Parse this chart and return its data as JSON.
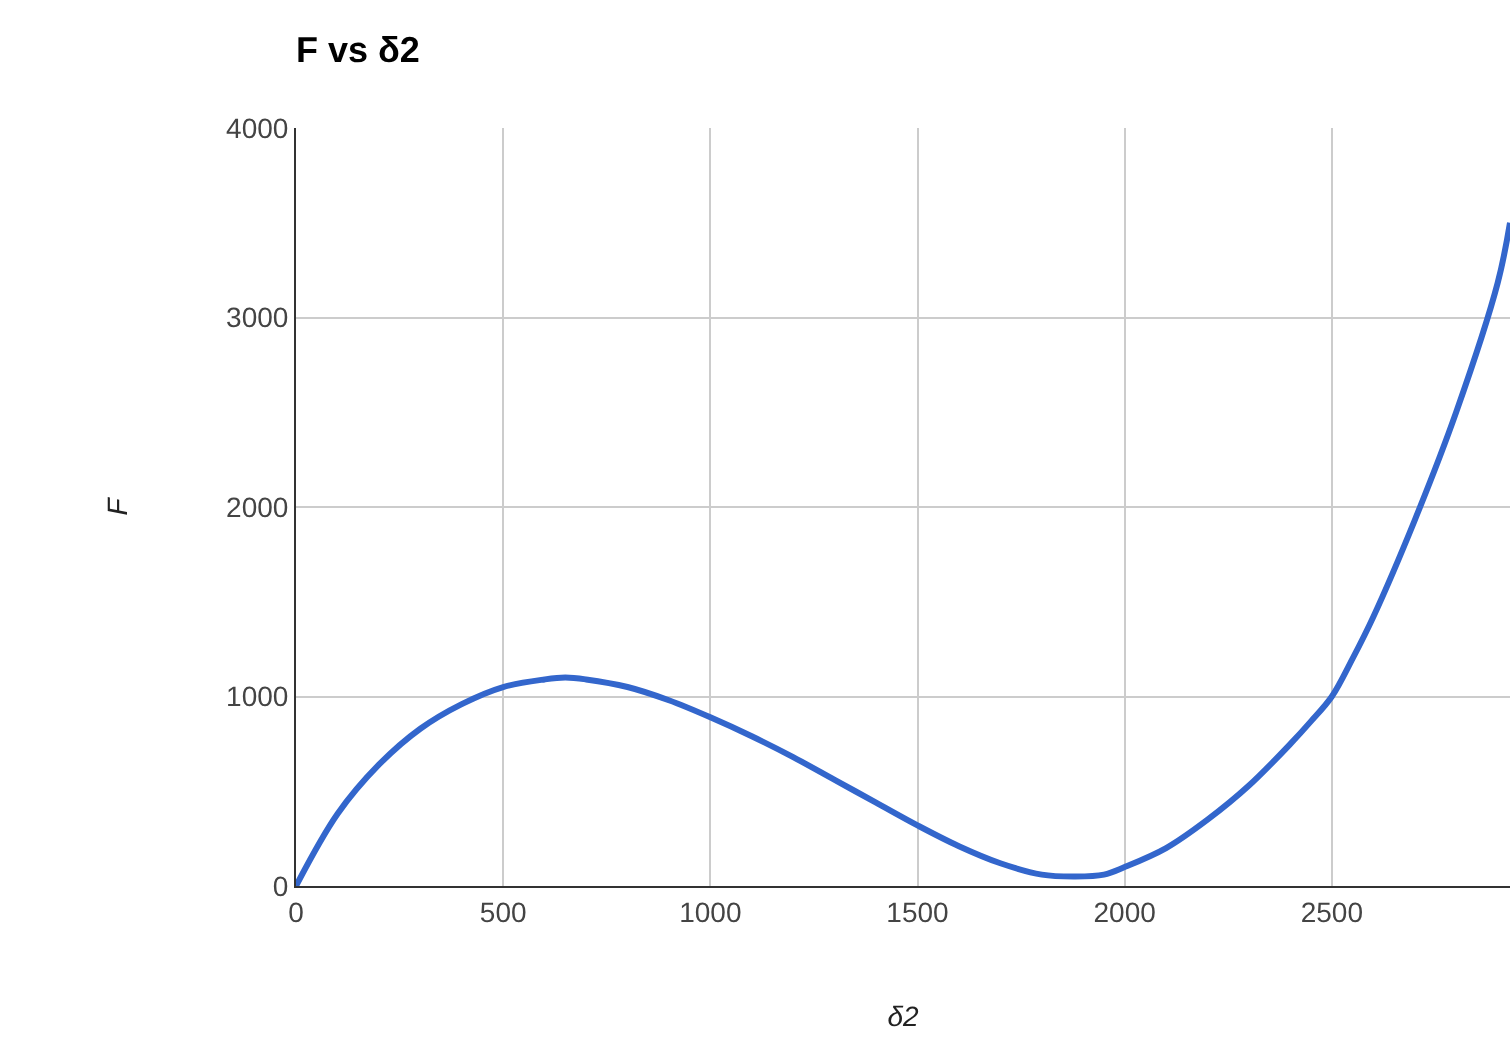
{
  "chart_data": {
    "type": "line",
    "title": "F vs δ2",
    "xlabel": "δ2",
    "ylabel": "F",
    "x": [
      0,
      100,
      200,
      300,
      400,
      500,
      600,
      650,
      700,
      800,
      900,
      1000,
      1100,
      1200,
      1300,
      1400,
      1500,
      1600,
      1700,
      1800,
      1880,
      1950,
      2000,
      2100,
      2200,
      2300,
      2400,
      2450,
      2500,
      2550,
      2600,
      2700,
      2800,
      2900,
      2930
    ],
    "series": [
      {
        "color": "#3366cc",
        "values": [
          0,
          380,
          640,
          830,
          960,
          1050,
          1090,
          1100,
          1090,
          1050,
          980,
          890,
          790,
          680,
          560,
          440,
          320,
          210,
          120,
          60,
          50,
          60,
          100,
          200,
          350,
          530,
          750,
          870,
          1000,
          1200,
          1420,
          1930,
          2500,
          3180,
          3500
        ]
      }
    ],
    "xlim": [
      0,
      2930
    ],
    "xticks": [
      0,
      500,
      1000,
      1500,
      2000,
      2500
    ],
    "ylim": [
      0,
      4000
    ],
    "yticks": [
      0,
      1000,
      2000,
      3000,
      4000
    ],
    "grid": true,
    "marker": "none",
    "line_style": "solid"
  }
}
